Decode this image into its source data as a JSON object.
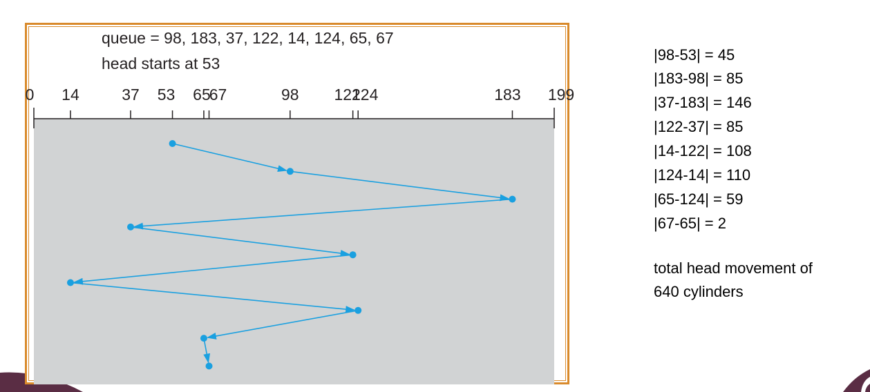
{
  "figure": {
    "queue_text": "queue = 98, 183, 37, 122, 14, 124, 65, 67",
    "start_text": "head starts at 53"
  },
  "chart_data": {
    "type": "line",
    "x_ticks": [
      0,
      14,
      37,
      53,
      65,
      67,
      98,
      122,
      124,
      183,
      199
    ],
    "tick_labels": [
      "0",
      "14",
      "37",
      "53",
      "65",
      "67",
      "98",
      "122",
      "124",
      "183",
      "199"
    ],
    "xlim": [
      0,
      199
    ],
    "head_path": [
      53,
      98,
      183,
      37,
      122,
      14,
      124,
      65,
      67
    ],
    "colors": {
      "path": "#1aa0e0",
      "plot_bg": "#d1d3d4",
      "frame": "#d98a2b"
    }
  },
  "calculations": [
    "|98-53| = 45",
    "|183-98| = 85",
    "|37-183| = 146",
    "|122-37| = 85",
    "|14-122| = 108",
    "|124-14| = 110",
    "|65-124| = 59",
    "|67-65| = 2"
  ],
  "summary": {
    "line1": "total head movement of",
    "line2": "640 cylinders"
  }
}
